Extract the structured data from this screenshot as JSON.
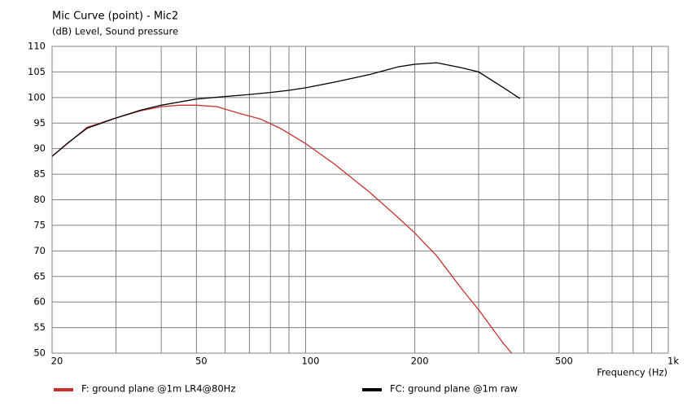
{
  "chart_data": {
    "type": "line",
    "title": "Mic Curve (point) - Mic2",
    "subtitle": "(dB)  Level, Sound pressure",
    "x_label": "Frequency  (Hz)",
    "x_log": true,
    "xlim": [
      20,
      1000
    ],
    "xticks": [
      20,
      50,
      100,
      200,
      500,
      {
        "value": 1000,
        "label": "1k"
      }
    ],
    "x_minor_grid": [
      30,
      40,
      60,
      70,
      80,
      90,
      300,
      400,
      600,
      700,
      800,
      900
    ],
    "ylim": [
      50,
      110
    ],
    "yticks": [
      50,
      55,
      60,
      65,
      70,
      75,
      80,
      85,
      90,
      95,
      100,
      105,
      110
    ],
    "grid": true,
    "series": [
      {
        "name": "F: ground plane @1m LR4@80Hz",
        "color": "#c8302c",
        "x": [
          20,
          25,
          30,
          35,
          40,
          45,
          50,
          57,
          65,
          75,
          85,
          100,
          120,
          150,
          180,
          200,
          230,
          270,
          300,
          350,
          370
        ],
        "values": [
          88.5,
          94.2,
          96,
          97.4,
          98.2,
          98.5,
          98.5,
          98.2,
          97,
          95.8,
          94,
          91,
          87,
          81.5,
          76.5,
          73.5,
          69,
          62.5,
          58.5,
          52,
          50
        ]
      },
      {
        "name": "FC: ground plane @1m raw",
        "color": "#000000",
        "x": [
          20,
          22,
          25,
          30,
          35,
          40,
          50,
          60,
          70,
          80,
          90,
          100,
          120,
          150,
          180,
          200,
          230,
          270,
          300,
          350,
          390
        ],
        "values": [
          88.5,
          91,
          94,
          96,
          97.5,
          98.5,
          99.7,
          100.2,
          100.6,
          101,
          101.4,
          101.9,
          103,
          104.5,
          106,
          106.5,
          106.8,
          105.8,
          105,
          102,
          99.8
        ]
      }
    ]
  }
}
